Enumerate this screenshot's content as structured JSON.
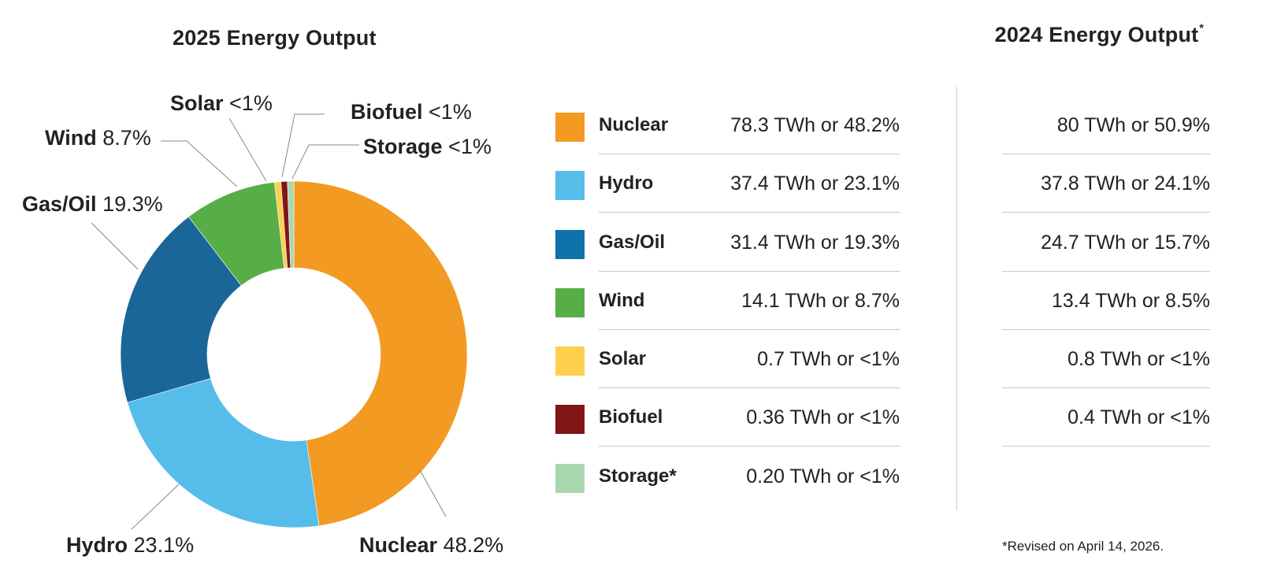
{
  "titles": {
    "left": "2025 Energy Output",
    "right": "2024 Energy Output",
    "right_marker": "*"
  },
  "footnote": "*Revised on April 14, 2026.",
  "colors": {
    "nuclear": "#F39A22",
    "hydro": "#56BDEB",
    "gas_oil": "#1A6699",
    "wind": "#57AE47",
    "solar": "#FFD04D",
    "biofuel": "#801616",
    "storage": "#A9D7B0",
    "table_gas_oil": "#0E73A8"
  },
  "chart_data": {
    "type": "pie",
    "variant": "donut",
    "title": "2025 Energy Output",
    "slices": [
      {
        "name": "Nuclear",
        "value": 48.2,
        "label_pct": "48.2%"
      },
      {
        "name": "Hydro",
        "value": 23.1,
        "label_pct": "23.1%"
      },
      {
        "name": "Gas/Oil",
        "value": 19.3,
        "label_pct": "19.3%"
      },
      {
        "name": "Wind",
        "value": 8.7,
        "label_pct": "8.7%"
      },
      {
        "name": "Solar",
        "value": 0.6,
        "label_pct": "<1%"
      },
      {
        "name": "Biofuel",
        "value": 0.6,
        "label_pct": "<1%"
      },
      {
        "name": "Storage",
        "value": 0.6,
        "label_pct": "<1%"
      }
    ]
  },
  "table_2025": [
    {
      "name": "Nuclear",
      "value": "78.3 TWh or 48.2%"
    },
    {
      "name": "Hydro",
      "value": "37.4 TWh or 23.1%"
    },
    {
      "name": "Gas/Oil",
      "value": "31.4 TWh or 19.3%"
    },
    {
      "name": "Wind",
      "value": "14.1 TWh or 8.7%"
    },
    {
      "name": "Solar",
      "value": "0.7 TWh or <1%"
    },
    {
      "name": "Biofuel",
      "value": "0.36 TWh or <1%"
    },
    {
      "name": "Storage*",
      "value": "0.20 TWh or <1%"
    }
  ],
  "table_2024": [
    {
      "value": "80 TWh or 50.9%"
    },
    {
      "value": "37.8 TWh or 24.1%"
    },
    {
      "value": "24.7 TWh or 15.7%"
    },
    {
      "value": "13.4 TWh or 8.5%"
    },
    {
      "value": "0.8 TWh or <1%"
    },
    {
      "value": "0.4 TWh or <1%"
    }
  ]
}
